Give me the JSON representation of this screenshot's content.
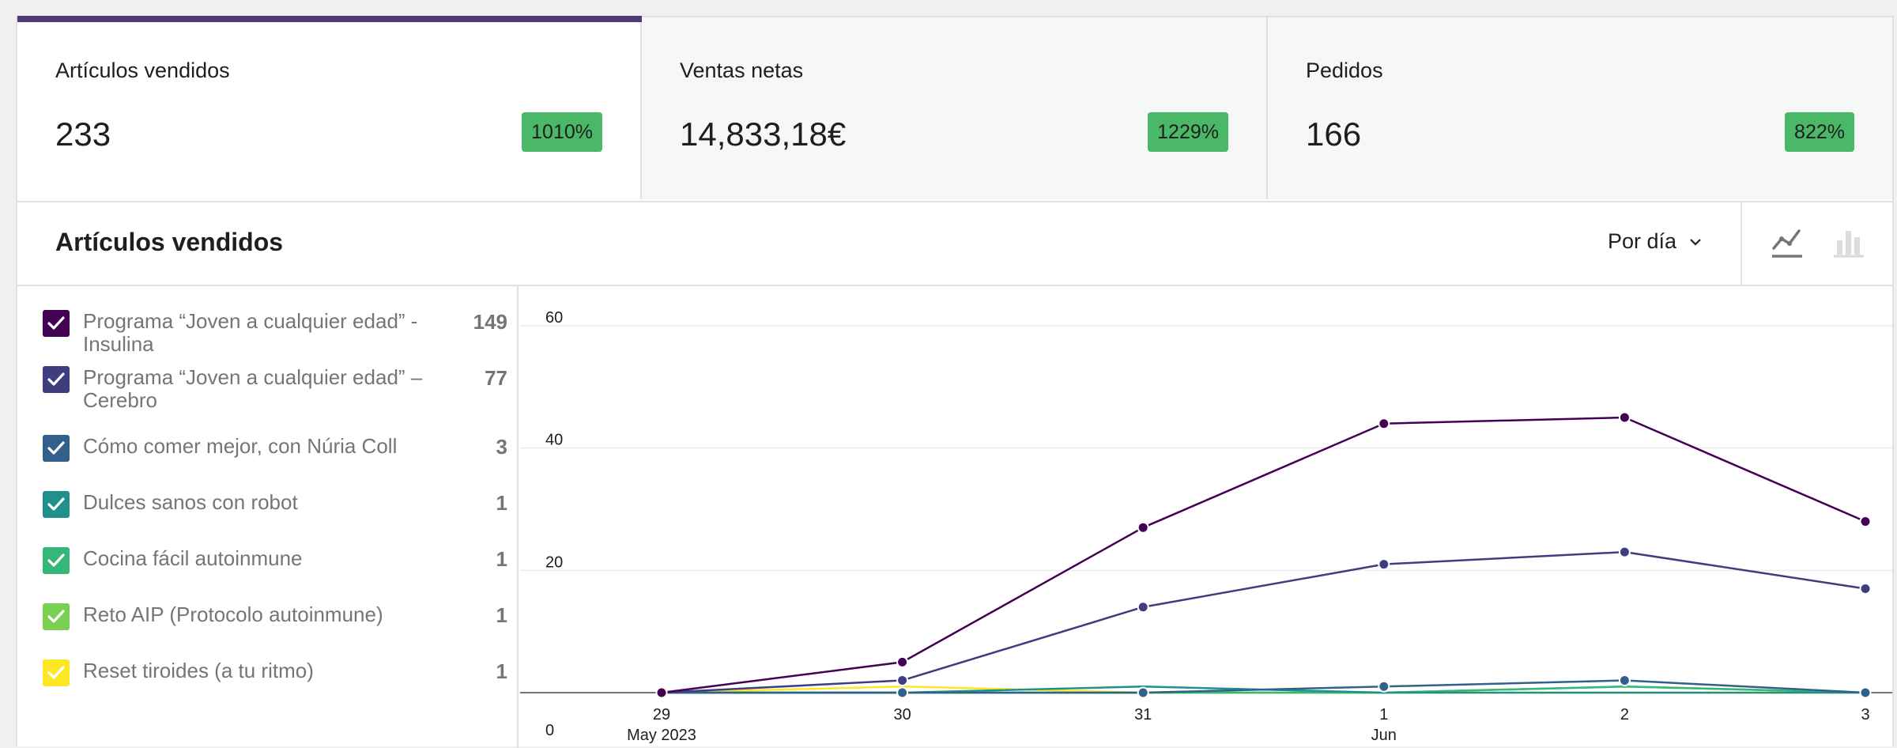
{
  "summary": [
    {
      "label": "Artículos vendidos",
      "value": "233",
      "delta": "1010%",
      "selected": true
    },
    {
      "label": "Ventas netas",
      "value": "14,833,18€",
      "delta": "1229%",
      "selected": false
    },
    {
      "label": "Pedidos",
      "value": "166",
      "delta": "822%",
      "selected": false
    }
  ],
  "chart_header": {
    "title": "Artículos vendidos",
    "interval_label": "Por día",
    "chart_types": [
      "line",
      "bar"
    ],
    "active_chart_type": "line"
  },
  "legend": [
    {
      "name": "Programa “Joven a cualquier edad” - Insulina",
      "count": "149",
      "color": "#440154",
      "checked": true
    },
    {
      "name": "Programa “Joven a cualquier edad” – Cerebro",
      "count": "77",
      "color": "#3f3c80",
      "checked": true
    },
    {
      "name": "Cómo comer mejor, con Núria Coll",
      "count": "3",
      "color": "#31618b",
      "checked": true
    },
    {
      "name": "Dulces sanos con robot",
      "count": "1",
      "color": "#21908d",
      "checked": true
    },
    {
      "name": "Cocina fácil autoinmune",
      "count": "1",
      "color": "#35b779",
      "checked": true
    },
    {
      "name": "Reto AIP (Protocolo autoinmune)",
      "count": "1",
      "color": "#7ad151",
      "checked": true
    },
    {
      "name": "Reset tiroides (a tu ritmo)",
      "count": "1",
      "color": "#fde725",
      "checked": true
    }
  ],
  "chart_data": {
    "type": "line",
    "x": [
      "29",
      "30",
      "31",
      "1",
      "2",
      "3"
    ],
    "x_group_labels": [
      {
        "label": "May 2023",
        "at": "29"
      },
      {
        "label": "Jun",
        "at": "1"
      }
    ],
    "yticks": [
      0,
      20,
      40,
      60
    ],
    "ylim": [
      0,
      60
    ],
    "grid": true,
    "series": [
      {
        "name": "Programa “Joven a cualquier edad” - Insulina",
        "color": "#440154",
        "values": [
          0,
          5,
          27,
          44,
          45,
          28
        ],
        "markers": true
      },
      {
        "name": "Programa “Joven a cualquier edad” – Cerebro",
        "color": "#3f3c80",
        "values": [
          0,
          2,
          14,
          21,
          23,
          17
        ],
        "markers": true
      },
      {
        "name": "Cómo comer mejor, con Núria Coll",
        "color": "#31618b",
        "values": [
          0,
          0,
          0,
          1,
          2,
          0
        ],
        "markers": true
      },
      {
        "name": "Dulces sanos con robot",
        "color": "#21908d",
        "values": [
          0,
          0,
          1,
          0,
          0,
          0
        ],
        "markers": false
      },
      {
        "name": "Cocina fácil autoinmune",
        "color": "#35b779",
        "values": [
          0,
          0,
          0,
          0,
          1,
          0
        ],
        "markers": false
      },
      {
        "name": "Reto AIP (Protocolo autoinmune)",
        "color": "#7ad151",
        "values": [
          0,
          0,
          0,
          0,
          1,
          0
        ],
        "markers": false
      },
      {
        "name": "Reset tiroides (a tu ritmo)",
        "color": "#fde725",
        "values": [
          0,
          1,
          0,
          0,
          0,
          0
        ],
        "markers": false
      }
    ]
  }
}
